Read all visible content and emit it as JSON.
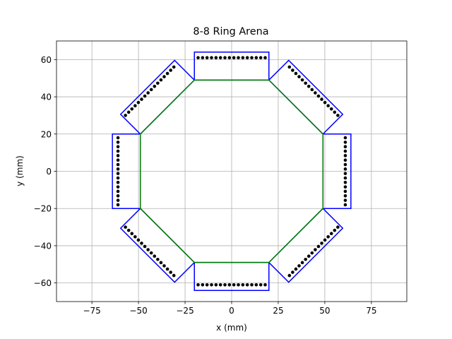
{
  "chart_data": {
    "type": "diagram-scatter",
    "title": "8-8 Ring Arena",
    "xlabel": "x (mm)",
    "ylabel": "y (mm)",
    "xlim": [
      -94,
      94
    ],
    "ylim": [
      -70,
      70
    ],
    "xticks": [
      -75,
      -50,
      -25,
      0,
      25,
      50,
      75
    ],
    "yticks": [
      -60,
      -40,
      -20,
      0,
      20,
      40,
      60
    ],
    "xtick_labels": [
      "−75",
      "−50",
      "−25",
      "0",
      "25",
      "50",
      "75"
    ],
    "ytick_labels": [
      "−60",
      "−40",
      "−20",
      "0",
      "20",
      "40",
      "60"
    ],
    "grid": true,
    "colors": {
      "arena": "#008000",
      "panels": "#0000ff",
      "points": "#000000",
      "grid": "#b0b0b0"
    },
    "arena_octagon": [
      [
        20,
        49
      ],
      [
        49,
        20
      ],
      [
        49,
        -20
      ],
      [
        20,
        -49
      ],
      [
        -20,
        -49
      ],
      [
        -49,
        -20
      ],
      [
        -49,
        20
      ],
      [
        -20,
        49
      ]
    ],
    "panels": [
      [
        [
          -20,
          49
        ],
        [
          20,
          49
        ],
        [
          20,
          64
        ],
        [
          -20,
          64
        ]
      ],
      [
        [
          20,
          49
        ],
        [
          49,
          20
        ],
        [
          59.6,
          30.6
        ],
        [
          30.6,
          59.6
        ]
      ],
      [
        [
          49,
          20
        ],
        [
          49,
          -20
        ],
        [
          64,
          -20
        ],
        [
          64,
          20
        ]
      ],
      [
        [
          49,
          -20
        ],
        [
          20,
          -49
        ],
        [
          30.6,
          -59.6
        ],
        [
          59.6,
          -30.6
        ]
      ],
      [
        [
          20,
          -49
        ],
        [
          -20,
          -49
        ],
        [
          -20,
          -64
        ],
        [
          20,
          -64
        ]
      ],
      [
        [
          -20,
          -49
        ],
        [
          -49,
          -20
        ],
        [
          -59.6,
          -30.6
        ],
        [
          -30.6,
          -59.6
        ]
      ],
      [
        [
          -49,
          -20
        ],
        [
          -49,
          20
        ],
        [
          -64,
          20
        ],
        [
          -64,
          -20
        ]
      ],
      [
        [
          -49,
          20
        ],
        [
          -20,
          49
        ],
        [
          -30.6,
          59.6
        ],
        [
          -59.6,
          30.6
        ]
      ]
    ],
    "point_rows": [
      {
        "start": [
          -18,
          61
        ],
        "end": [
          18,
          61
        ],
        "count": 16
      },
      {
        "start": [
          31,
          56
        ],
        "end": [
          57,
          30
        ],
        "count": 16
      },
      {
        "start": [
          61,
          18
        ],
        "end": [
          61,
          -18
        ],
        "count": 16
      },
      {
        "start": [
          57,
          -30
        ],
        "end": [
          31,
          -56
        ],
        "count": 16
      },
      {
        "start": [
          18,
          -61
        ],
        "end": [
          -18,
          -61
        ],
        "count": 16
      },
      {
        "start": [
          -31,
          -56
        ],
        "end": [
          -57,
          -30
        ],
        "count": 16
      },
      {
        "start": [
          -61,
          -18
        ],
        "end": [
          -61,
          18
        ],
        "count": 16
      },
      {
        "start": [
          -57,
          30
        ],
        "end": [
          -31,
          56
        ],
        "count": 16
      }
    ]
  }
}
